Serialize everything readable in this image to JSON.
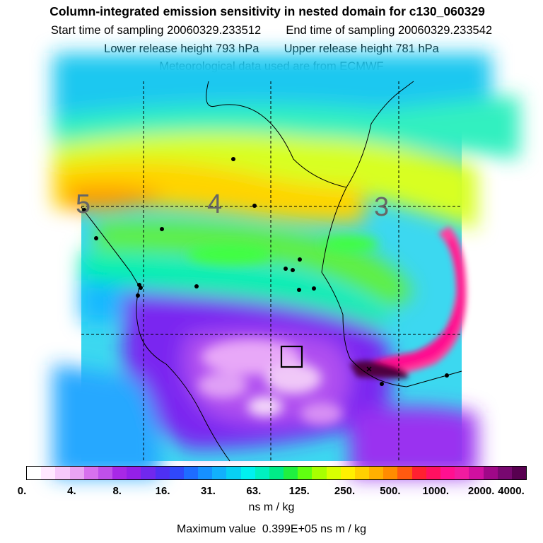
{
  "header": {
    "title": "Column-integrated emission sensitivity in nested domain for c130_060329",
    "start_label": "Start time of sampling",
    "start_value": "20060329.233512",
    "end_label": "End time of sampling",
    "end_value": "20060329.233542",
    "lower_label": "Lower release height",
    "lower_value": "793 hPa",
    "upper_label": "Upper release height",
    "upper_value": "781 hPa",
    "met_note": "Meteorological data used are from ECMWF"
  },
  "map": {
    "day_labels": [
      "5",
      "4",
      "3"
    ],
    "colors": {
      "white": "#ffffff",
      "lavender": "#f0c8f8",
      "magenta": "#d070f0",
      "violet": "#a020f0",
      "purple": "#8a2be2",
      "blue": "#2050ff",
      "sky": "#1ea0ff",
      "cyan": "#00e8f0",
      "teal": "#00f0b0",
      "green": "#40ff40",
      "lime": "#c8ff00",
      "yellow": "#ffe800",
      "orange": "#ffa000",
      "red": "#ff3030",
      "pink": "#ff1090",
      "dark": "#500040"
    }
  },
  "colorbar": {
    "segment_colors": [
      "#ffffff",
      "#ffe8ff",
      "#f6c8fa",
      "#eaa4f4",
      "#d870ee",
      "#c050ea",
      "#a828e6",
      "#9420e8",
      "#7028ee",
      "#4e30f4",
      "#3048fa",
      "#1e6cff",
      "#1690ff",
      "#12b0fc",
      "#08d0f4",
      "#00f0f0",
      "#00f0c0",
      "#00ec88",
      "#20f040",
      "#60ff10",
      "#a8ff00",
      "#d8ff00",
      "#fff000",
      "#ffd000",
      "#ffb000",
      "#ff8c00",
      "#ff5a10",
      "#ff2030",
      "#ff1060",
      "#ff1090",
      "#f01ca0",
      "#d010a0",
      "#a00888",
      "#780870",
      "#580050"
    ],
    "tick_labels": [
      "0.",
      "4.",
      "8.",
      "16.",
      "31.",
      "63.",
      "125.",
      "250.",
      "500.",
      "1000.",
      "2000.",
      "4000."
    ],
    "units": "ns m / kg"
  },
  "footer": {
    "max_label": "Maximum value",
    "max_value": "0.399E+05 ns m / kg"
  }
}
